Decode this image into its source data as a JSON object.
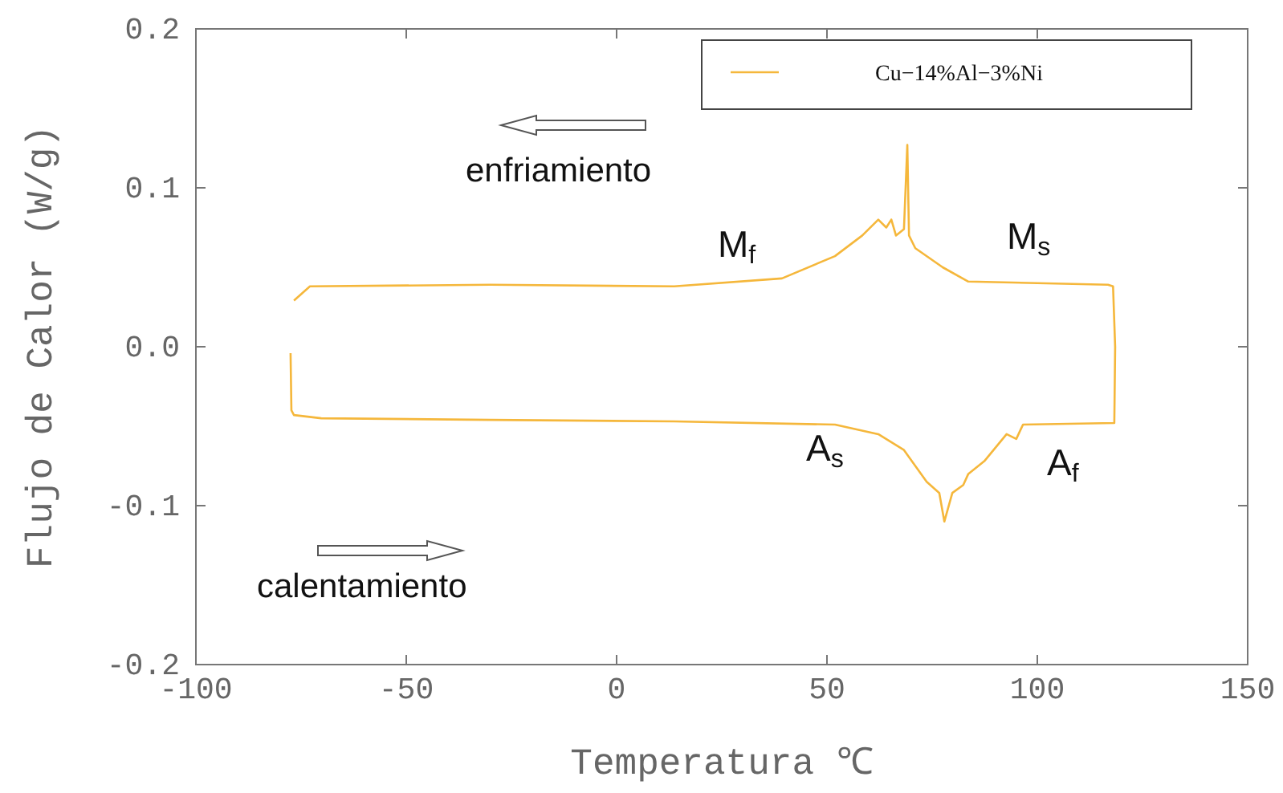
{
  "chart_data": {
    "type": "line",
    "xlabel": "Temperatura ℃",
    "ylabel": "Flujo de Calor (W/g)",
    "xlim": [
      -100,
      150
    ],
    "xticks": [
      -100,
      -50,
      0,
      50,
      100,
      150
    ],
    "ylim": [
      -0.2,
      0.2
    ],
    "yticks": [
      {
        "value": -0.2,
        "label": "-0.2"
      },
      {
        "value": -0.1,
        "label": "-0.1"
      },
      {
        "value": 0,
        "label": "0.0"
      },
      {
        "value": 0.1,
        "label": "0.1"
      },
      {
        "value": 0.2,
        "label": "0.2"
      }
    ],
    "grid": false,
    "legend": "top right",
    "marker": "none",
    "line_style": "solid",
    "series": [
      {
        "name": "Cu−14%Al−3%Ni",
        "color": "#f5b73b",
        "x": [
          -77.5,
          -77.3,
          -76.7,
          -70.2,
          -30,
          13.7,
          51.9,
          62.2,
          68.3,
          73.7,
          76.7,
          77.9,
          79.8,
          82.4,
          83.6,
          87.4,
          92.7,
          95,
          96.6,
          118.3,
          118.5,
          118,
          116.8,
          83.6,
          77.5,
          71,
          69.5,
          69.1,
          68.3,
          66.4,
          65.3,
          64.1,
          62.2,
          58.4,
          51.9,
          39.3,
          13.7,
          -30,
          -72.9,
          -76.7
        ],
        "values": [
          -0.004,
          -0.04,
          -0.043,
          -0.045,
          -0.046,
          -0.047,
          -0.049,
          -0.055,
          -0.065,
          -0.085,
          -0.092,
          -0.11,
          -0.092,
          -0.087,
          -0.08,
          -0.072,
          -0.055,
          -0.058,
          -0.049,
          -0.048,
          0.0,
          0.038,
          0.039,
          0.041,
          0.05,
          0.062,
          0.07,
          0.127,
          0.074,
          0.07,
          0.08,
          0.075,
          0.08,
          0.07,
          0.057,
          0.043,
          0.038,
          0.039,
          0.038,
          0.029
        ]
      }
    ],
    "annotations": [
      "enfriamiento",
      "calentamiento",
      "M$_{f}$",
      "M$_{s}$",
      "A$_{s}$",
      "A$_{f}$"
    ]
  }
}
